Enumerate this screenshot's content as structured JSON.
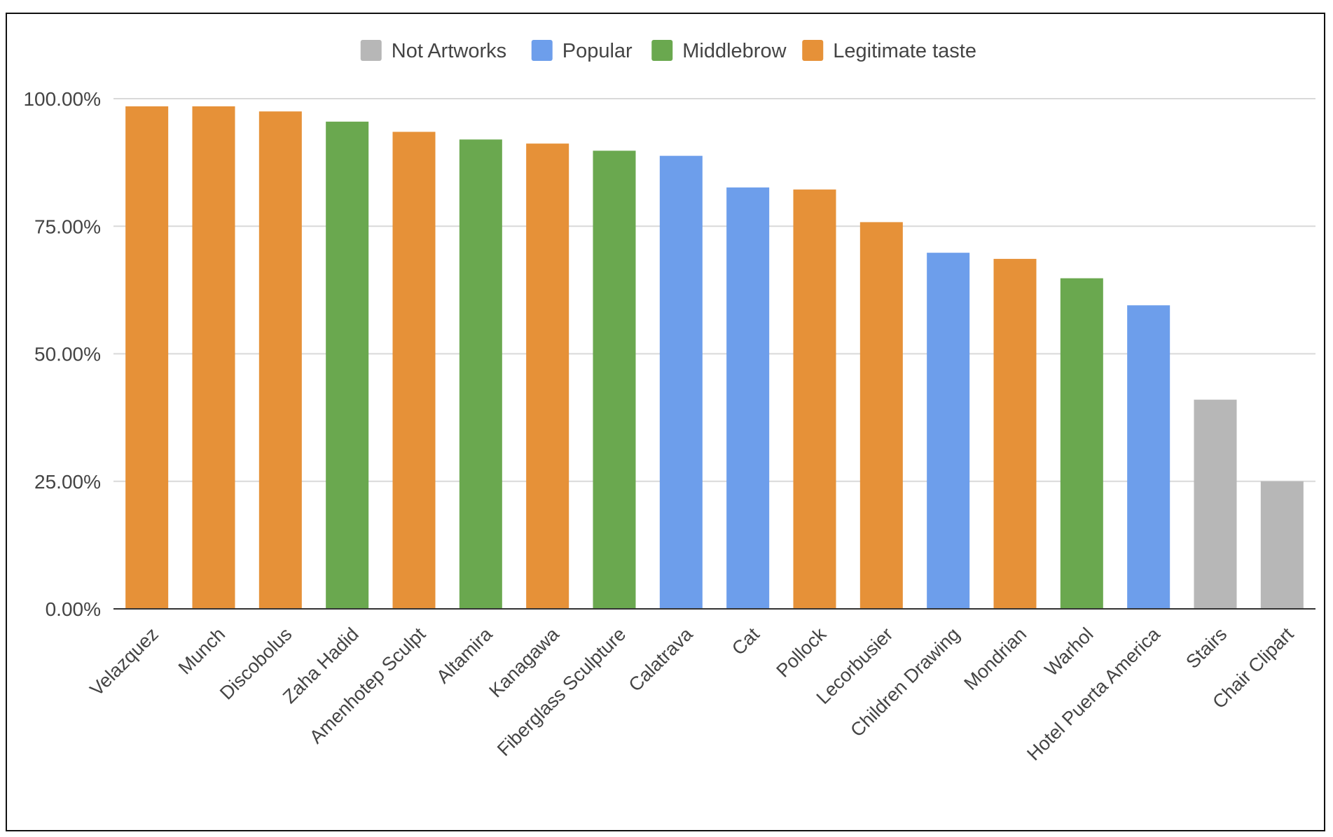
{
  "chart_data": {
    "type": "bar",
    "title": "",
    "xlabel": "",
    "ylabel": "",
    "ylim": [
      0,
      1
    ],
    "yticks": [
      {
        "value": 0,
        "label": "0.00%"
      },
      {
        "value": 0.25,
        "label": "25.00%"
      },
      {
        "value": 0.5,
        "label": "50.00%"
      },
      {
        "value": 0.75,
        "label": "75.00%"
      },
      {
        "value": 1,
        "label": "100.00%"
      }
    ],
    "grid": true,
    "legend_position": "top-center",
    "legend": [
      {
        "name": "Not Artworks",
        "color": "#b7b7b7"
      },
      {
        "name": "Popular",
        "color": "#6d9eeb"
      },
      {
        "name": "Middlebrow",
        "color": "#6aa84f"
      },
      {
        "name": "Legitimate taste",
        "color": "#e69138"
      }
    ],
    "categories": [
      "Velazquez",
      "Munch",
      "Discobolus",
      "Zaha Hadid",
      "Amenhotep Sculpt",
      "Altamira",
      "Kanagawa",
      "Fiberglass Sculpture",
      "Calatrava",
      "Cat",
      "Pollock",
      "Lecorbusier",
      "Children Drawing",
      "Mondrian",
      "Warhol",
      "Hotel Puerta America",
      "Stairs",
      "Chair Clipart"
    ],
    "values": [
      0.985,
      0.985,
      0.975,
      0.955,
      0.935,
      0.92,
      0.912,
      0.898,
      0.888,
      0.826,
      0.822,
      0.758,
      0.698,
      0.686,
      0.648,
      0.595,
      0.41,
      0.25
    ],
    "groups": [
      "Legitimate taste",
      "Legitimate taste",
      "Legitimate taste",
      "Middlebrow",
      "Legitimate taste",
      "Middlebrow",
      "Legitimate taste",
      "Middlebrow",
      "Popular",
      "Popular",
      "Legitimate taste",
      "Legitimate taste",
      "Popular",
      "Legitimate taste",
      "Middlebrow",
      "Popular",
      "Not Artworks",
      "Not Artworks"
    ]
  }
}
